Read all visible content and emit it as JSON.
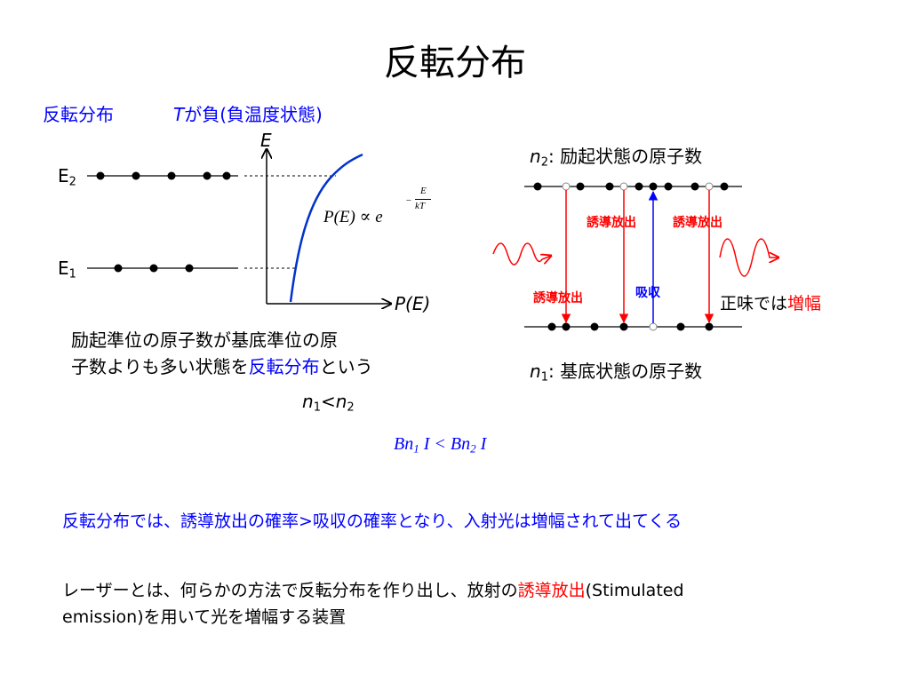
{
  "title": "反転分布",
  "left_heading": {
    "term": "反転分布",
    "t_symbol": "T",
    "t_text": "が負(負温度状態)"
  },
  "energy_diagram": {
    "axis_y": "E",
    "axis_x": "P(E)",
    "level_upper": "E",
    "level_upper_sub": "2",
    "level_lower": "E",
    "level_lower_sub": "1",
    "formula_lhs": "P(E) ∝ e",
    "formula_exp_num": "E",
    "formula_exp_den": "kT",
    "formula_exp_sign": "−",
    "desc_line1": "励起準位の原子数が基底準位の原",
    "desc_line2_pre": "子数よりも多い状態を",
    "desc_line2_hl": "反転分布",
    "desc_line2_post": "という",
    "inequality": {
      "n": "n",
      "s1": "1",
      "lt": "<",
      "s2": "2"
    }
  },
  "transition_diagram": {
    "upper_label_n": "n",
    "upper_label_sub": "2",
    "upper_label_text": ": 励起状態の原子数",
    "lower_label_n": "n",
    "lower_label_sub": "1",
    "lower_label_text": ": 基底状態の原子数",
    "stim_label_1": "誘導放出",
    "stim_label_2": "誘導放出",
    "stim_label_3": "誘導放出",
    "absorb_label": "吸収",
    "net_prefix": "正味では",
    "net_hl": "増幅"
  },
  "rate_formula": {
    "b": "Bn",
    "s1": "1",
    "i1": " I < Bn",
    "s2": "2",
    "i2": " I"
  },
  "conclusion_line": "反転分布では、誘導放出の確率>吸収の確率となり、入射光は増幅されて出てくる",
  "laser_def": {
    "pre": "レーザーとは、何らかの方法で反転分布を作り出し、放射の",
    "hl": "誘導放出",
    "post": "(Stimulated",
    "line2": "emission)を用いて光を増幅する装置"
  },
  "colors": {
    "accent_blue": "#0000ff",
    "accent_red": "#ff0000",
    "curve_blue": "#0033cc"
  }
}
